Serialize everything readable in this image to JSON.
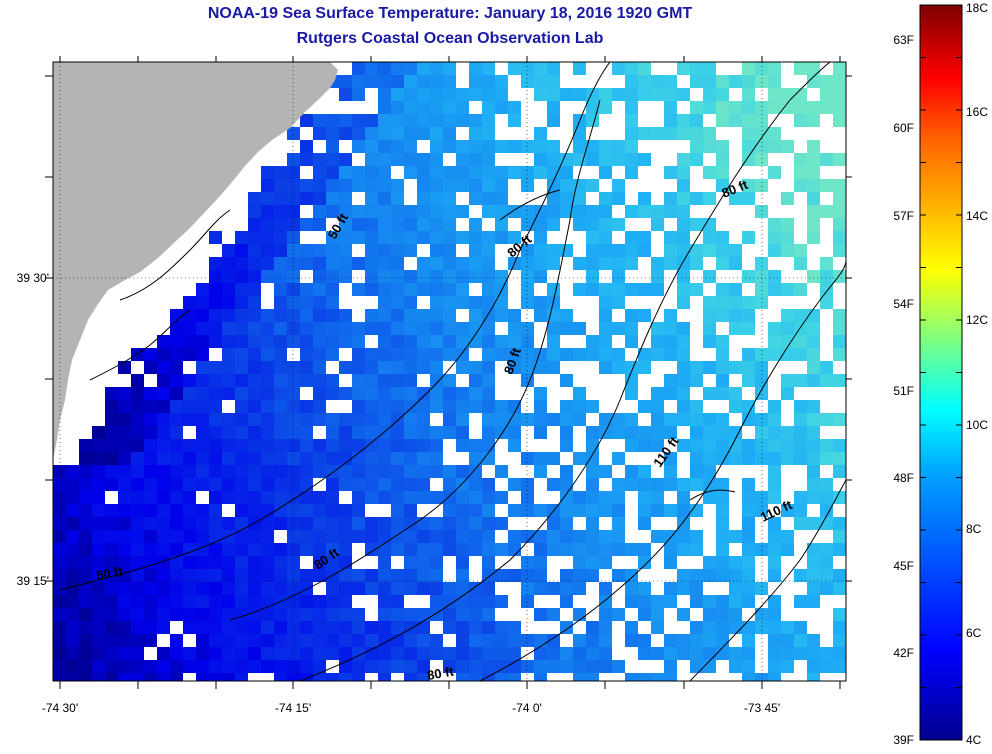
{
  "title": {
    "line1": "NOAA-19 Sea Surface Temperature:  January 18, 2016 1920 GMT",
    "line2": "Rutgers Coastal Ocean Observation Lab"
  },
  "map": {
    "x_ticks": [
      "-74 30'",
      "-74 15'",
      "-74 0'",
      "-73 45'"
    ],
    "y_ticks": [
      "39 30'",
      "39 15'"
    ],
    "contour_labels": [
      "50 ft",
      "50 ft",
      "80 ft",
      "80 ft",
      "80 ft",
      "80 ft",
      "80 ft",
      "110 ft",
      "110 ft"
    ]
  },
  "colorbar": {
    "fahrenheit_labels": [
      "63F",
      "60F",
      "57F",
      "54F",
      "51F",
      "48F",
      "45F",
      "42F",
      "39F"
    ],
    "celsius_labels": [
      "18C",
      "16C",
      "14C",
      "12C",
      "10C",
      "8C",
      "6C",
      "4C"
    ]
  },
  "colors": {
    "land": "#b4b4b4",
    "nodata": "#ffffff",
    "title": "#1a1aa6"
  }
}
